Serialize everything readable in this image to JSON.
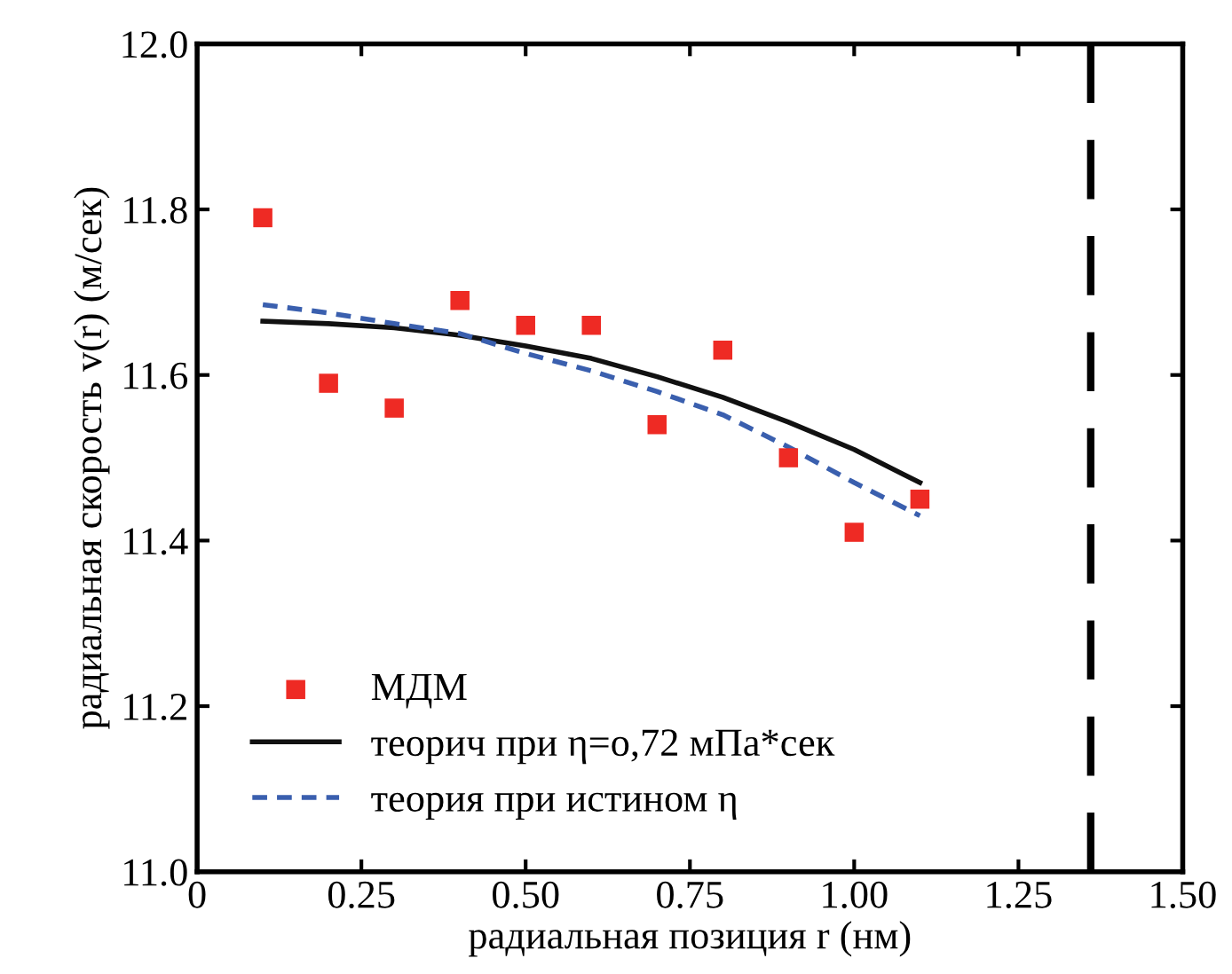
{
  "chart_data": {
    "type": "scatter",
    "xlabel": "радиальная позиция r (нм)",
    "ylabel": "радиальная скорость v(r) (м/сек)",
    "xlim": [
      0,
      1.5
    ],
    "ylim": [
      11.0,
      12.0
    ],
    "xticks": [
      0,
      {
        "value": 0.25,
        "label": "0.25"
      },
      {
        "value": 0.5,
        "label": "0.50"
      },
      {
        "value": 0.75,
        "label": "0.75"
      },
      {
        "value": 1.0,
        "label": "1.00"
      },
      {
        "value": 1.25,
        "label": "1.25"
      },
      {
        "value": 1.5,
        "label": "1.50"
      }
    ],
    "yticks": [
      {
        "value": 11.0,
        "label": "11.0"
      },
      11.2,
      11.4,
      11.6,
      11.8,
      {
        "value": 12.0,
        "label": "12.0"
      }
    ],
    "grid": false,
    "legend": "bottom left",
    "series": [
      {
        "name": "МДМ",
        "marker": "square",
        "color": "#ee2a24",
        "x": [
          0.1,
          0.2,
          0.3,
          0.4,
          0.5,
          0.6,
          0.7,
          0.8,
          0.9,
          1.0,
          1.1
        ],
        "values": [
          11.79,
          11.59,
          11.56,
          11.69,
          11.66,
          11.66,
          11.54,
          11.63,
          11.5,
          11.41,
          11.45
        ]
      },
      {
        "name": "теорич при η=о,72 мПа*сек",
        "type": "line",
        "line_style": "solid",
        "color": "#111111",
        "x": [
          0.1,
          0.2,
          0.3,
          0.4,
          0.5,
          0.6,
          0.7,
          0.8,
          0.9,
          1.0,
          1.1
        ],
        "values": [
          11.665,
          11.662,
          11.657,
          11.648,
          11.635,
          11.62,
          11.598,
          11.573,
          11.543,
          11.51,
          11.47
        ]
      },
      {
        "name": "теория при истином η",
        "type": "line",
        "line_style": "dashed",
        "color": "#3a5fae",
        "x": [
          0.1,
          0.2,
          0.3,
          0.4,
          0.5,
          0.6,
          0.7,
          0.8,
          0.9,
          1.0,
          1.1
        ],
        "values": [
          11.685,
          11.675,
          11.662,
          11.65,
          11.626,
          11.605,
          11.58,
          11.552,
          11.513,
          11.47,
          11.43
        ]
      }
    ],
    "ref_lines": [
      {
        "axis": "x",
        "value": 1.36,
        "color": "#000000",
        "line_style": "dashed"
      }
    ]
  }
}
